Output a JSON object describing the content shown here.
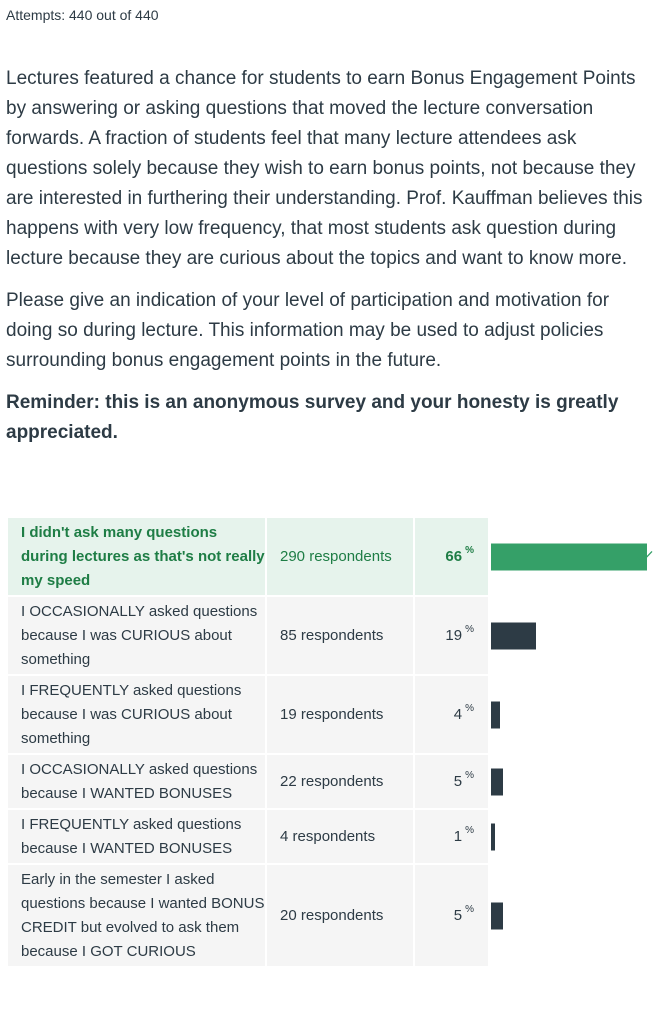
{
  "header": {
    "attempts": "Attempts: 440 out of 440"
  },
  "question": {
    "paragraph1": "Lectures featured a chance for students to earn Bonus Engagement Points by answering or asking questions that moved the lecture conversation forwards. A fraction of students feel that many lecture attendees ask questions solely because they wish to earn bonus points, not because they are interested in furthering their understanding. Prof. Kauffman believes this happens with very low frequency, that most students ask question during lecture because they are curious about the topics and want to know more.",
    "paragraph2": "Please give an indication of your level of participation and motivation for doing so during lecture. This information may be used to adjust policies surrounding bonus engagement points in the future.",
    "reminder": "Reminder: this is an anonymous survey and your honesty is greatly appreciated."
  },
  "results": {
    "percent_symbol": "%",
    "colors": {
      "correct_bar": "#35a068",
      "correct_bg": "#e6f3ec",
      "correct_text": "#1e7d45",
      "bar": "#2d3b45",
      "cell_bg": "#f5f5f5"
    },
    "answers": [
      {
        "text": "I didn't ask many questions during lectures as that's not really my speed",
        "respondents": "290 respondents",
        "percent": "66",
        "fraction": 0.66,
        "correct": true,
        "icon": "check-icon"
      },
      {
        "text": "I OCCASIONALLY asked questions because I was CURIOUS about something",
        "respondents": "85 respondents",
        "percent": "19",
        "fraction": 0.19,
        "correct": false
      },
      {
        "text": "I FREQUENTLY asked questions because I was CURIOUS about something",
        "respondents": "19 respondents",
        "percent": "4",
        "fraction": 0.04,
        "correct": false
      },
      {
        "text": "I OCCASIONALLY asked questions because I WANTED BONUSES",
        "respondents": "22 respondents",
        "percent": "5",
        "fraction": 0.05,
        "correct": false
      },
      {
        "text": "I FREQUENTLY asked questions because I WANTED BONUSES",
        "respondents": "4 respondents",
        "percent": "1",
        "fraction": 0.01,
        "correct": false
      },
      {
        "text": "Early in the semester I asked questions because I wanted BONUS CREDIT but evolved to ask them because I GOT CURIOUS",
        "respondents": "20 respondents",
        "percent": "5",
        "fraction": 0.05,
        "correct": false
      }
    ]
  }
}
